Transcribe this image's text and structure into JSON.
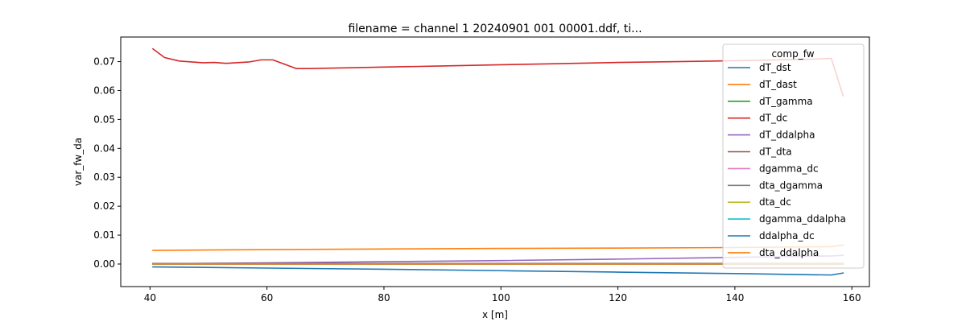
{
  "chart_data": {
    "type": "line",
    "title": "filename = channel 1 20240901 001 00001.ddf, ti...",
    "xlabel": "x [m]",
    "ylabel": "var_fw_da",
    "xlim": [
      35,
      163
    ],
    "ylim": [
      -0.0078,
      0.0785
    ],
    "xticks": [
      40,
      60,
      80,
      100,
      120,
      140,
      160
    ],
    "yticks": [
      0.0,
      0.01,
      0.02,
      0.03,
      0.04,
      0.05,
      0.06,
      0.07
    ],
    "ytick_labels": [
      "0.00",
      "0.01",
      "0.02",
      "0.03",
      "0.04",
      "0.05",
      "0.06",
      "0.07"
    ],
    "grid": false,
    "legend": {
      "title": "comp_fw",
      "placement": "top-right"
    },
    "series": [
      {
        "name": "dT_dst",
        "color": "#1f77b4",
        "x": [
          40.5,
          60,
          80,
          100,
          120,
          140,
          156.5,
          158.5
        ],
        "y": [
          -0.001,
          -0.0014,
          -0.0018,
          -0.0023,
          -0.0028,
          -0.0033,
          -0.0038,
          -0.0031
        ]
      },
      {
        "name": "dT_dast",
        "color": "#ff7f0e",
        "x": [
          40.5,
          60,
          80,
          100,
          120,
          140,
          156.5,
          158.5
        ],
        "y": [
          0.0047,
          0.005,
          0.0052,
          0.0054,
          0.0055,
          0.0057,
          0.006,
          0.0066
        ]
      },
      {
        "name": "dT_gamma",
        "color": "#2ca02c",
        "x": [
          40.5,
          80,
          120,
          158.5
        ],
        "y": [
          0.0001,
          0.0001,
          0.0001,
          0.0001
        ]
      },
      {
        "name": "dT_dc",
        "color": "#d62728",
        "x": [
          40.5,
          42.5,
          45,
          49,
          51,
          53,
          57,
          59,
          61,
          65,
          67,
          75,
          80,
          90,
          100,
          110,
          120,
          130,
          140,
          150,
          154,
          156.5,
          158.5
        ],
        "y": [
          0.0744,
          0.0714,
          0.0702,
          0.0696,
          0.0697,
          0.0694,
          0.0699,
          0.0706,
          0.0706,
          0.0676,
          0.0676,
          0.0679,
          0.0681,
          0.0685,
          0.0689,
          0.0693,
          0.0697,
          0.07,
          0.0703,
          0.0707,
          0.0709,
          0.0711,
          0.0582
        ]
      },
      {
        "name": "dT_ddalpha",
        "color": "#9467bd",
        "x": [
          40.5,
          60,
          80,
          100,
          120,
          140,
          156.5,
          158.5
        ],
        "y": [
          0.0001,
          0.0004,
          0.0008,
          0.0012,
          0.0017,
          0.0023,
          0.0028,
          0.003
        ]
      },
      {
        "name": "dT_dta",
        "color": "#8c564b",
        "x": [
          40.5,
          80,
          120,
          158.5
        ],
        "y": [
          0.0002,
          0.0002,
          0.0002,
          0.0002
        ]
      },
      {
        "name": "dgamma_dc",
        "color": "#e377c2",
        "x": [
          40.5,
          80,
          120,
          158.5
        ],
        "y": [
          0.0,
          0.0,
          0.0,
          0.0
        ]
      },
      {
        "name": "dta_dgamma",
        "color": "#7f7f7f",
        "x": [
          40.5,
          80,
          120,
          158.5
        ],
        "y": [
          0.0001,
          0.0001,
          0.0001,
          0.0001
        ]
      },
      {
        "name": "dta_dc",
        "color": "#bcbd22",
        "x": [
          40.5,
          80,
          120,
          158.5
        ],
        "y": [
          0.0,
          0.0,
          0.0,
          0.0
        ]
      },
      {
        "name": "dgamma_ddalpha",
        "color": "#17becf",
        "x": [
          40.5,
          80,
          120,
          158.5
        ],
        "y": [
          0.0,
          0.0,
          0.0,
          0.0
        ]
      },
      {
        "name": "ddalpha_dc",
        "color": "#1f77b4",
        "x": [
          40.5,
          80,
          120,
          158.5
        ],
        "y": [
          0.0,
          0.0,
          0.0,
          0.0
        ]
      },
      {
        "name": "dta_ddalpha",
        "color": "#ff7f0e",
        "x": [
          40.5,
          80,
          120,
          158.5
        ],
        "y": [
          0.0,
          0.0,
          0.0,
          0.0
        ]
      }
    ]
  }
}
